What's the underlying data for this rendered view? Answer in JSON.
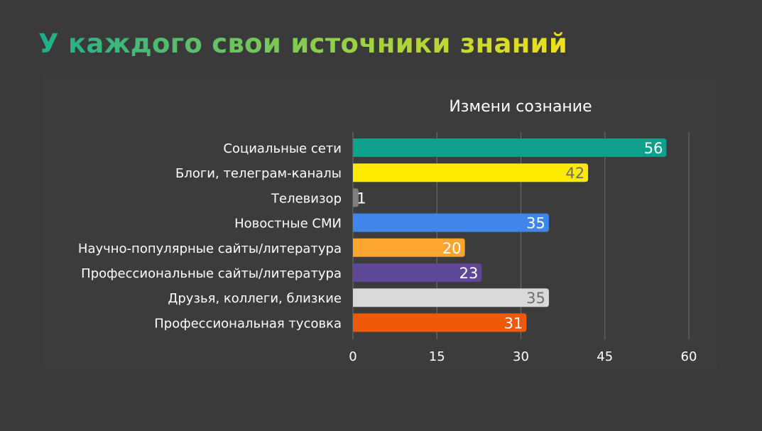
{
  "slide": {
    "title": "У каждого свои источники знаний"
  },
  "chart_data": {
    "type": "bar",
    "orientation": "horizontal",
    "title": "Измени сознание",
    "categories": [
      "Социальные сети",
      "Блоги, телеграм-каналы",
      "Телевизор",
      "Новостные СМИ",
      "Научно-популярные сайты/литература",
      "Профессиональные сайты/литература",
      "Друзья, коллеги, близкие",
      "Профессиональная тусовка"
    ],
    "values": [
      56,
      42,
      1,
      35,
      20,
      23,
      35,
      31
    ],
    "colors": [
      "#0fa08c",
      "#ffea00",
      "#7f7f7f",
      "#3f86e8",
      "#fba52e",
      "#5e4699",
      "#d9d9d9",
      "#ee5a0a"
    ],
    "label_colors": [
      "#ffffff",
      "#6d6d6d",
      "#ffffff",
      "#ffffff",
      "#ffffff",
      "#ffffff",
      "#6d6d6d",
      "#ffffff"
    ],
    "xlim": [
      0,
      60
    ],
    "xticks": [
      0,
      15,
      30,
      45,
      60
    ],
    "grid": true,
    "legend": "none"
  }
}
